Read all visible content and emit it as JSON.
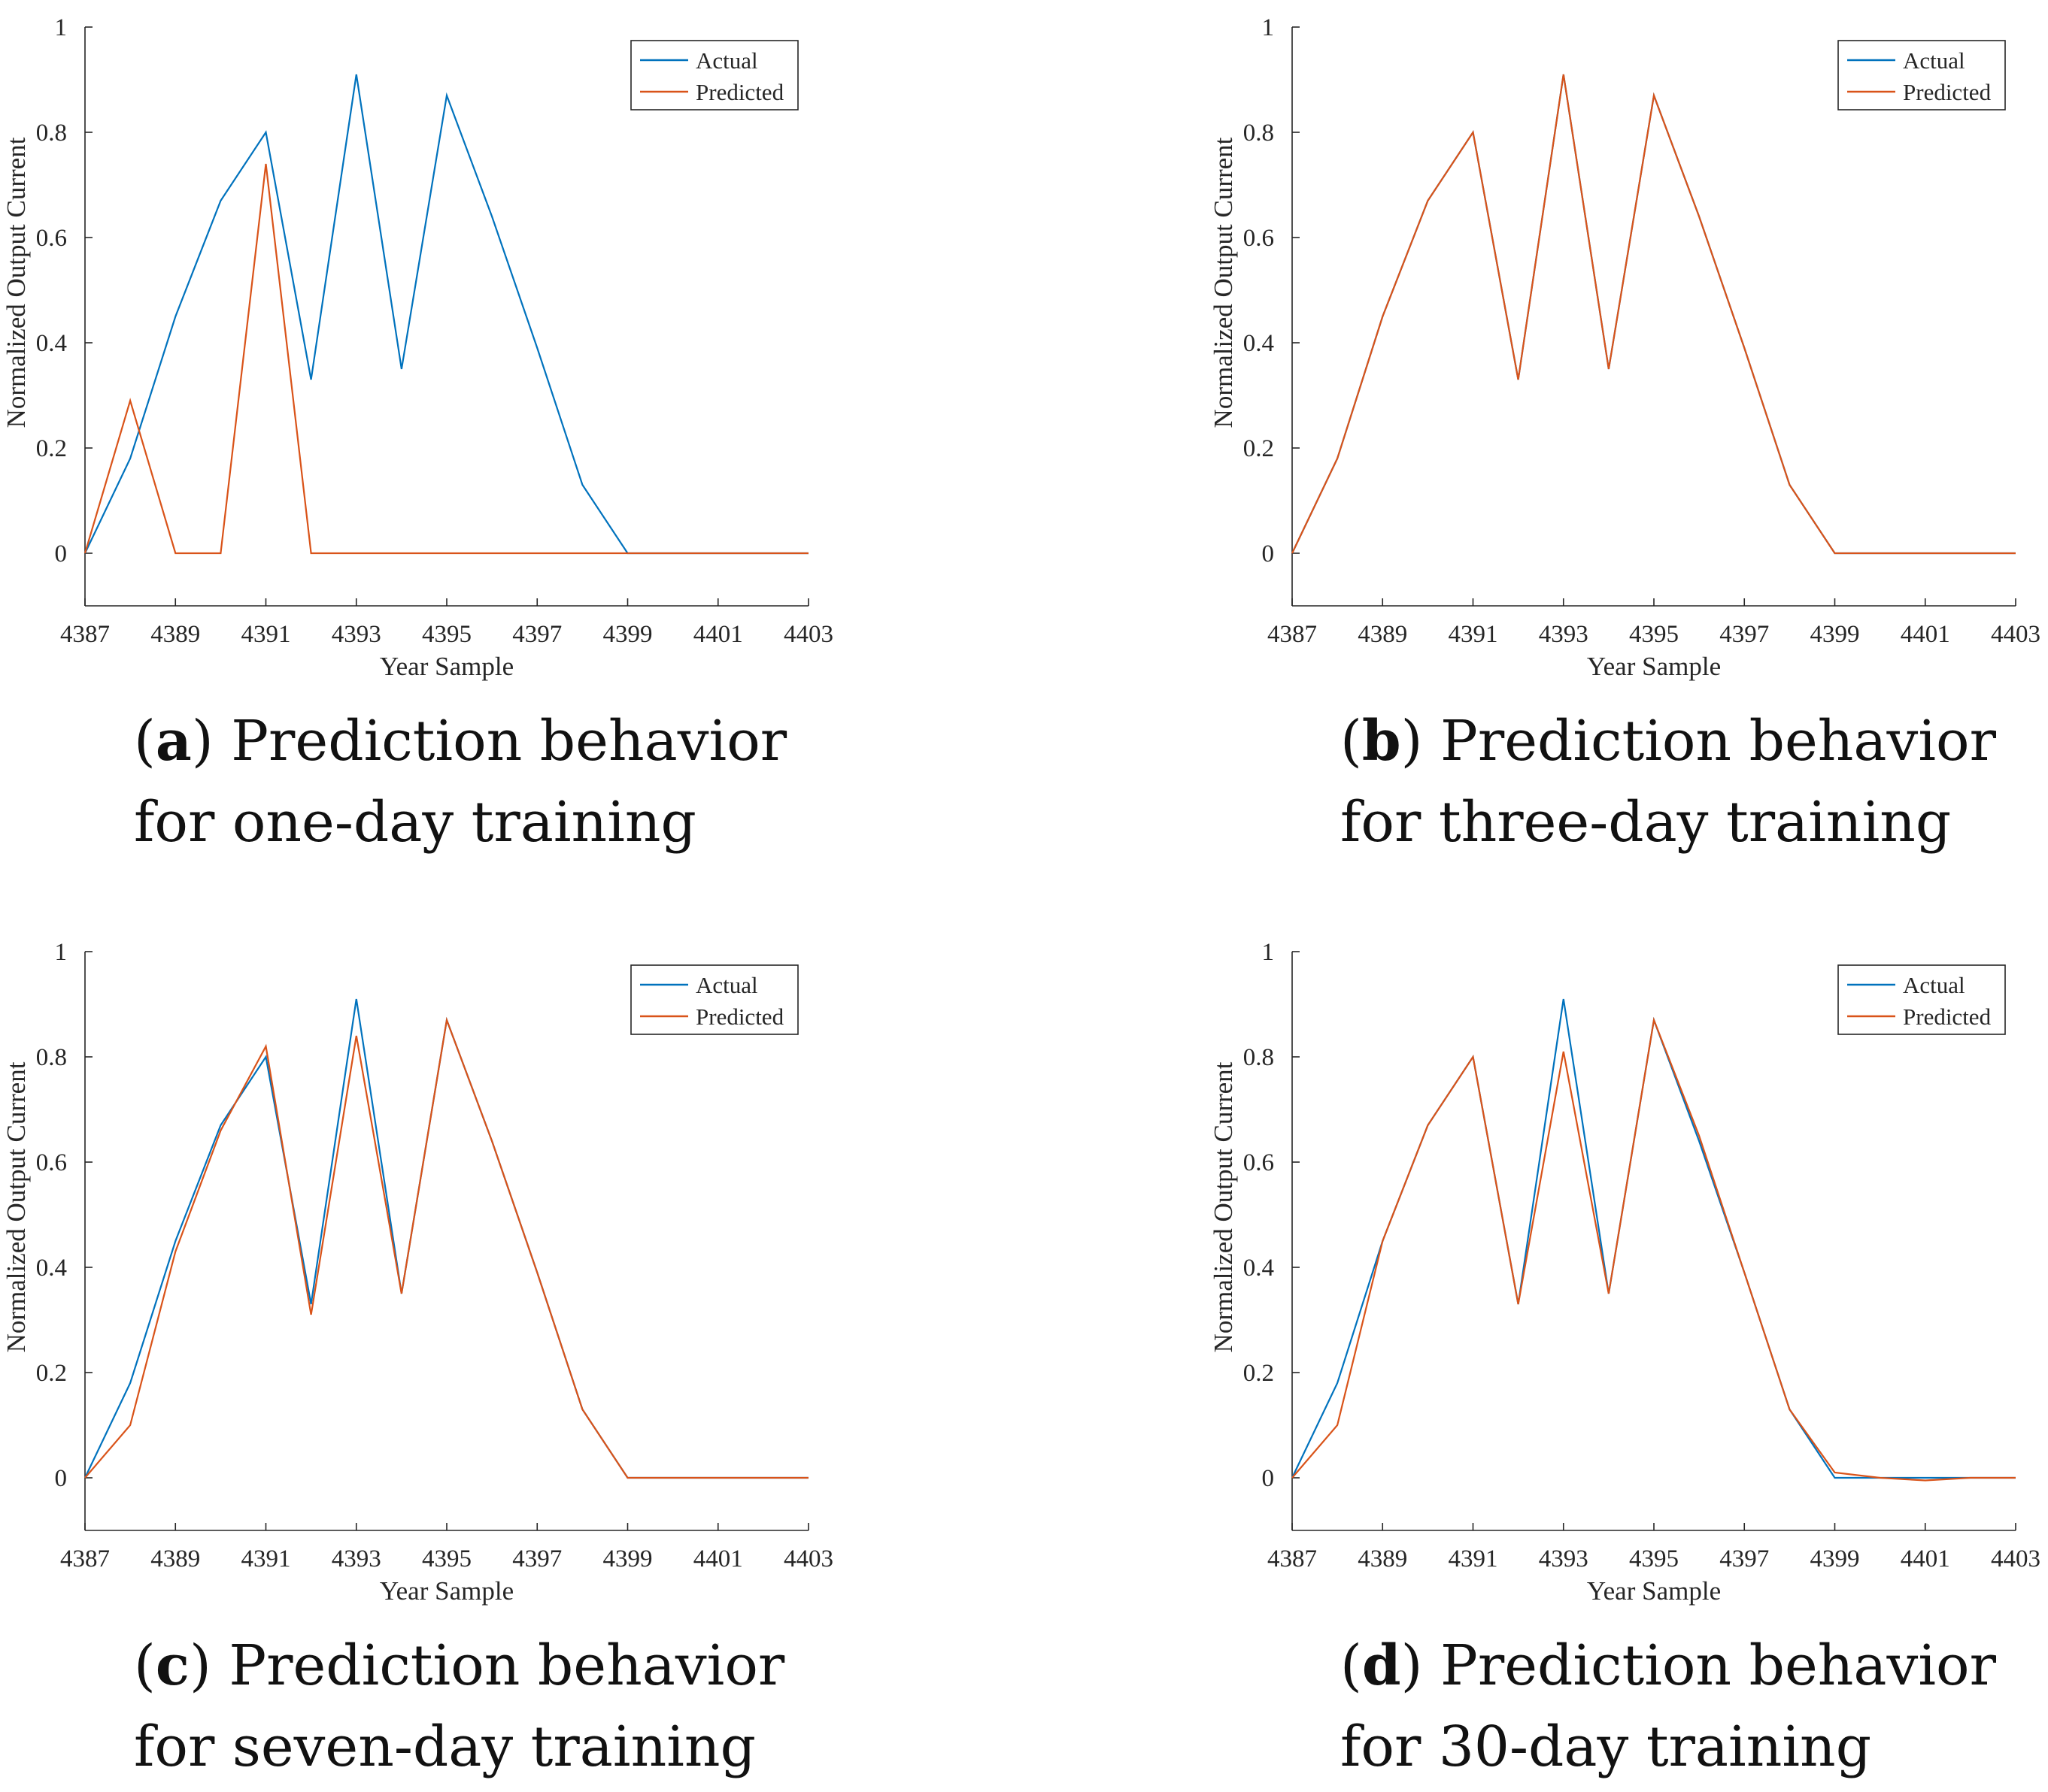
{
  "colors": {
    "actual": "#0072BD",
    "predicted": "#D95319",
    "axis": "#262626"
  },
  "chart_data": [
    {
      "type": "line",
      "panel": "a",
      "caption": {
        "tag": "a",
        "text_line1": "Prediction behavior",
        "text_line2": "for one-day training"
      },
      "xlabel": "Year Sample",
      "ylabel": "Normalized Output Current",
      "xlim": [
        4387,
        4403
      ],
      "ylim": [
        -0.1,
        1
      ],
      "xticks": [
        "4387",
        "4389",
        "4391",
        "4393",
        "4395",
        "4397",
        "4399",
        "4401",
        "4403"
      ],
      "yticks": [
        "0",
        "0.2",
        "0.4",
        "0.6",
        "0.8",
        "1"
      ],
      "legend_position": "top-right",
      "x": [
        4387,
        4388,
        4389,
        4390,
        4391,
        4392,
        4393,
        4394,
        4395,
        4396,
        4397,
        4398,
        4399,
        4400,
        4401,
        4402,
        4403
      ],
      "series": [
        {
          "name": "Actual",
          "values": [
            0,
            0.18,
            0.45,
            0.67,
            0.8,
            0.33,
            0.91,
            0.35,
            0.87,
            0.64,
            0.39,
            0.13,
            0,
            0,
            0,
            0,
            0
          ]
        },
        {
          "name": "Predicted",
          "values": [
            0,
            0.29,
            0,
            0,
            0.74,
            0,
            0,
            0,
            0,
            0,
            0,
            0,
            0,
            0,
            0,
            0,
            0
          ]
        }
      ]
    },
    {
      "type": "line",
      "panel": "b",
      "caption": {
        "tag": "b",
        "text_line1": "Prediction behavior",
        "text_line2": "for three-day training"
      },
      "xlabel": "Year Sample",
      "ylabel": "Normalized Output Current",
      "xlim": [
        4387,
        4403
      ],
      "ylim": [
        -0.1,
        1
      ],
      "xticks": [
        "4387",
        "4389",
        "4391",
        "4393",
        "4395",
        "4397",
        "4399",
        "4401",
        "4403"
      ],
      "yticks": [
        "0",
        "0.2",
        "0.4",
        "0.6",
        "0.8",
        "1"
      ],
      "legend_position": "top-right",
      "x": [
        4387,
        4388,
        4389,
        4390,
        4391,
        4392,
        4393,
        4394,
        4395,
        4396,
        4397,
        4398,
        4399,
        4400,
        4401,
        4402,
        4403
      ],
      "series": [
        {
          "name": "Actual",
          "values": [
            0,
            0.18,
            0.45,
            0.67,
            0.8,
            0.33,
            0.91,
            0.35,
            0.87,
            0.64,
            0.39,
            0.13,
            0,
            0,
            0,
            0,
            0
          ]
        },
        {
          "name": "Predicted",
          "values": [
            0,
            0.18,
            0.45,
            0.67,
            0.8,
            0.33,
            0.91,
            0.35,
            0.87,
            0.64,
            0.39,
            0.13,
            0,
            0,
            0,
            0,
            0
          ]
        }
      ]
    },
    {
      "type": "line",
      "panel": "c",
      "caption": {
        "tag": "c",
        "text_line1": "Prediction behavior",
        "text_line2": "for seven-day training"
      },
      "xlabel": "Year Sample",
      "ylabel": "Normalized Output Current",
      "xlim": [
        4387,
        4403
      ],
      "ylim": [
        -0.1,
        1
      ],
      "xticks": [
        "4387",
        "4389",
        "4391",
        "4393",
        "4395",
        "4397",
        "4399",
        "4401",
        "4403"
      ],
      "yticks": [
        "0",
        "0.2",
        "0.4",
        "0.6",
        "0.8",
        "1"
      ],
      "legend_position": "top-right",
      "x": [
        4387,
        4388,
        4389,
        4390,
        4391,
        4392,
        4393,
        4394,
        4395,
        4396,
        4397,
        4398,
        4399,
        4400,
        4401,
        4402,
        4403
      ],
      "series": [
        {
          "name": "Actual",
          "values": [
            0,
            0.18,
            0.45,
            0.67,
            0.8,
            0.33,
            0.91,
            0.35,
            0.87,
            0.64,
            0.39,
            0.13,
            0,
            0,
            0,
            0,
            0
          ]
        },
        {
          "name": "Predicted",
          "values": [
            0,
            0.1,
            0.43,
            0.66,
            0.82,
            0.31,
            0.84,
            0.35,
            0.87,
            0.64,
            0.39,
            0.13,
            0,
            0,
            0,
            0,
            0
          ]
        }
      ]
    },
    {
      "type": "line",
      "panel": "d",
      "caption": {
        "tag": "d",
        "text_line1": "Prediction behavior",
        "text_line2": "for 30-day training"
      },
      "xlabel": "Year Sample",
      "ylabel": "Normalized Output Current",
      "xlim": [
        4387,
        4403
      ],
      "ylim": [
        -0.1,
        1
      ],
      "xticks": [
        "4387",
        "4389",
        "4391",
        "4393",
        "4395",
        "4397",
        "4399",
        "4401",
        "4403"
      ],
      "yticks": [
        "0",
        "0.2",
        "0.4",
        "0.6",
        "0.8",
        "1"
      ],
      "legend_position": "top-right",
      "x": [
        4387,
        4388,
        4389,
        4390,
        4391,
        4392,
        4393,
        4394,
        4395,
        4396,
        4397,
        4398,
        4399,
        4400,
        4401,
        4402,
        4403
      ],
      "series": [
        {
          "name": "Actual",
          "values": [
            0,
            0.18,
            0.45,
            0.67,
            0.8,
            0.33,
            0.91,
            0.35,
            0.87,
            0.64,
            0.39,
            0.13,
            0,
            0,
            0,
            0,
            0
          ]
        },
        {
          "name": "Predicted",
          "values": [
            0,
            0.1,
            0.45,
            0.67,
            0.8,
            0.33,
            0.81,
            0.35,
            0.87,
            0.65,
            0.39,
            0.13,
            0.01,
            0,
            -0.005,
            0,
            0
          ]
        }
      ]
    }
  ]
}
